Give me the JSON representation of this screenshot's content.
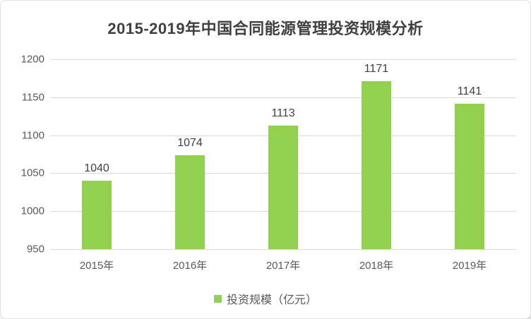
{
  "title": "2015-2019年中国合同能源管理投资规模分析",
  "legend": {
    "label": "投资规模（亿元）",
    "marker_color": "#92D050"
  },
  "colors": {
    "bar": "#92D050",
    "title_text": "#404040",
    "axis_text": "#595959",
    "data_label_text": "#404040",
    "gridline": "#D9D9D9",
    "background": "#FFFFFF"
  },
  "chart_data": {
    "type": "bar",
    "title": "2015-2019年中国合同能源管理投资规模分析",
    "categories": [
      "2015年",
      "2016年",
      "2017年",
      "2018年",
      "2019年"
    ],
    "series": [
      {
        "name": "投资规模（亿元）",
        "values": [
          1040,
          1074,
          1113,
          1171,
          1141
        ],
        "color": "#92D050"
      }
    ],
    "data_labels": [
      1040,
      1074,
      1113,
      1171,
      1141
    ],
    "xlabel": "",
    "ylabel": "",
    "ylim": [
      950,
      1200
    ],
    "yticks": [
      950,
      1000,
      1050,
      1100,
      1150,
      1200
    ],
    "grid": true,
    "legend_position": "bottom"
  }
}
